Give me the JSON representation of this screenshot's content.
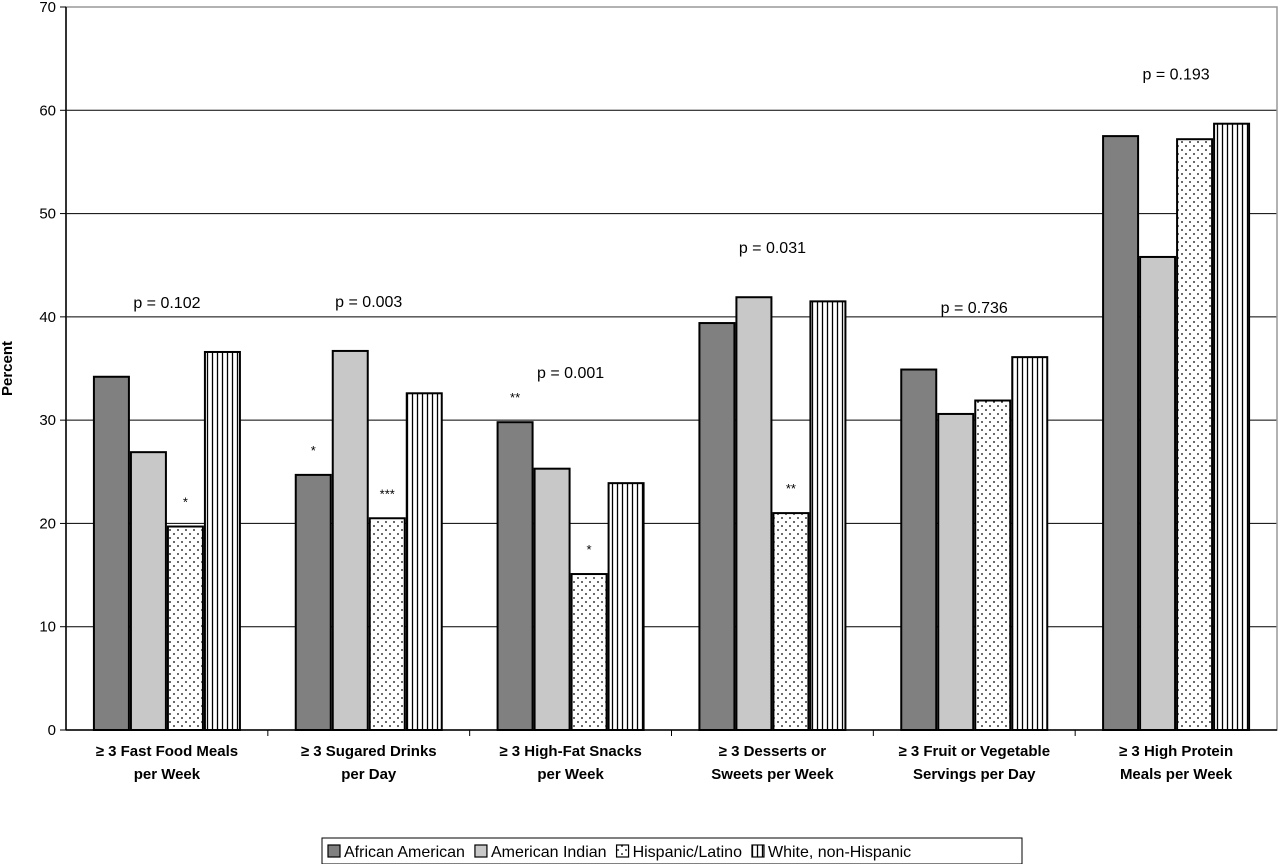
{
  "chart_data": {
    "type": "bar",
    "ylabel": "Percent",
    "xlabel": "",
    "ylim": [
      0,
      70
    ],
    "yticks": [
      "0",
      "10",
      "20",
      "30",
      "40",
      "50",
      "60",
      "70"
    ],
    "grid": "horizontal",
    "legend_position": "bottom",
    "categories": [
      "≥ 3 Fast Food Meals per Week",
      "≥ 3 Sugared Drinks per Day",
      "≥ 3 High-Fat Snacks per Week",
      "≥ 3 Desserts or Sweets per Week",
      "≥ 3 Fruit or Vegetable Servings per Day",
      "≥ 3 High Protein Meals per Week"
    ],
    "category_lines": [
      [
        "≥ 3 Fast Food Meals",
        "per Week"
      ],
      [
        "≥ 3 Sugared Drinks",
        "per Day"
      ],
      [
        "≥ 3 High-Fat Snacks",
        "per Week"
      ],
      [
        "≥ 3 Desserts or",
        "Sweets per Week"
      ],
      [
        "≥ 3 Fruit or Vegetable",
        "Servings per Day"
      ],
      [
        "≥ 3 High Protein",
        "Meals per Week"
      ]
    ],
    "p_values": [
      "p = 0.102",
      "p = 0.003",
      "p = 0.001",
      "p = 0.031",
      "p = 0.736",
      "p = 0.193"
    ],
    "series": [
      {
        "name": "African American",
        "fill": "dark-gray",
        "color": "#808080",
        "values": [
          34.2,
          24.7,
          29.8,
          39.4,
          34.9,
          57.5
        ],
        "significance": [
          "",
          "*",
          "**",
          "",
          "",
          ""
        ]
      },
      {
        "name": "American Indian",
        "fill": "light-gray",
        "color": "#c8c8c8",
        "values": [
          26.9,
          36.7,
          25.3,
          41.9,
          30.6,
          45.8
        ],
        "significance": [
          "",
          "",
          "",
          "",
          "",
          ""
        ]
      },
      {
        "name": "Hispanic/Latino",
        "fill": "dotted",
        "color": "#ffffff",
        "values": [
          19.7,
          20.5,
          15.1,
          21.0,
          31.9,
          57.2
        ],
        "significance": [
          "*",
          "***",
          "*",
          "**",
          "",
          ""
        ]
      },
      {
        "name": "White, non-Hispanic",
        "fill": "vertical-stripes",
        "color": "#ffffff",
        "values": [
          36.6,
          32.6,
          23.9,
          41.5,
          36.1,
          58.7
        ],
        "significance": [
          "",
          "",
          "",
          "",
          "",
          ""
        ]
      }
    ]
  }
}
